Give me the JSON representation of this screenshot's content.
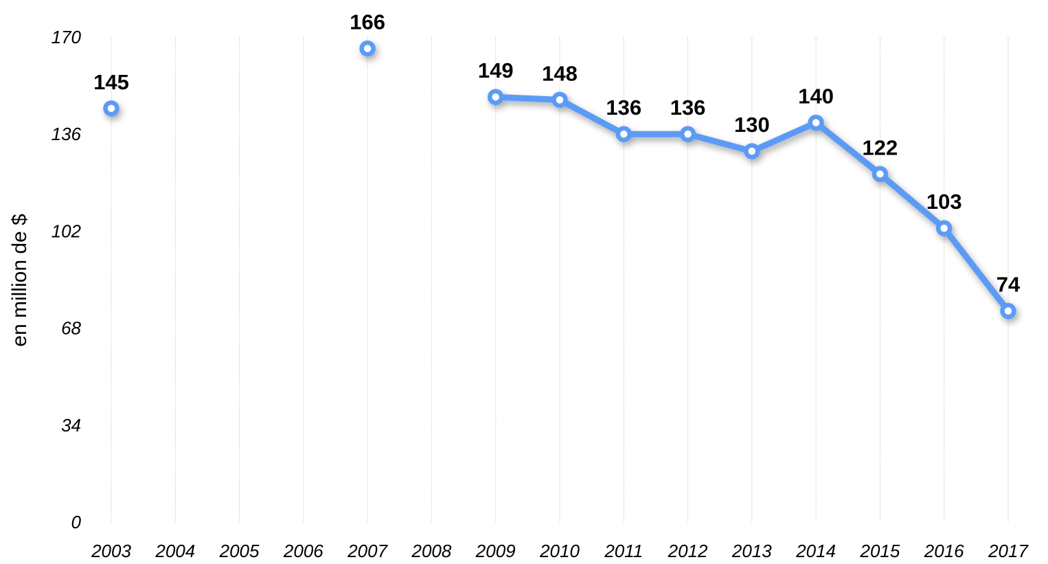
{
  "chart_data": {
    "type": "line",
    "title": "",
    "xlabel": "",
    "ylabel": "en million de $",
    "x": [
      "2003",
      "2004",
      "2005",
      "2006",
      "2007",
      "2008",
      "2009",
      "2010",
      "2011",
      "2012",
      "2013",
      "2014",
      "2015",
      "2016",
      "2017"
    ],
    "yticks": [
      "0",
      "34",
      "68",
      "102",
      "136",
      "170"
    ],
    "ylim": [
      0,
      170
    ],
    "grid": "vertical dotted",
    "legend": "none",
    "series": [
      {
        "values": [
          145,
          null,
          null,
          null,
          166,
          null,
          149,
          148,
          136,
          136,
          130,
          140,
          122,
          103,
          74
        ],
        "labels": [
          "145",
          "",
          "",
          "",
          "166",
          "",
          "149",
          "148",
          "136",
          "136",
          "130",
          "140",
          "122",
          "103",
          "74"
        ]
      }
    ],
    "colors": {
      "line": "#5b9bf5",
      "grid": "#b0b0b0",
      "marker_fill": "#ffffff"
    }
  }
}
